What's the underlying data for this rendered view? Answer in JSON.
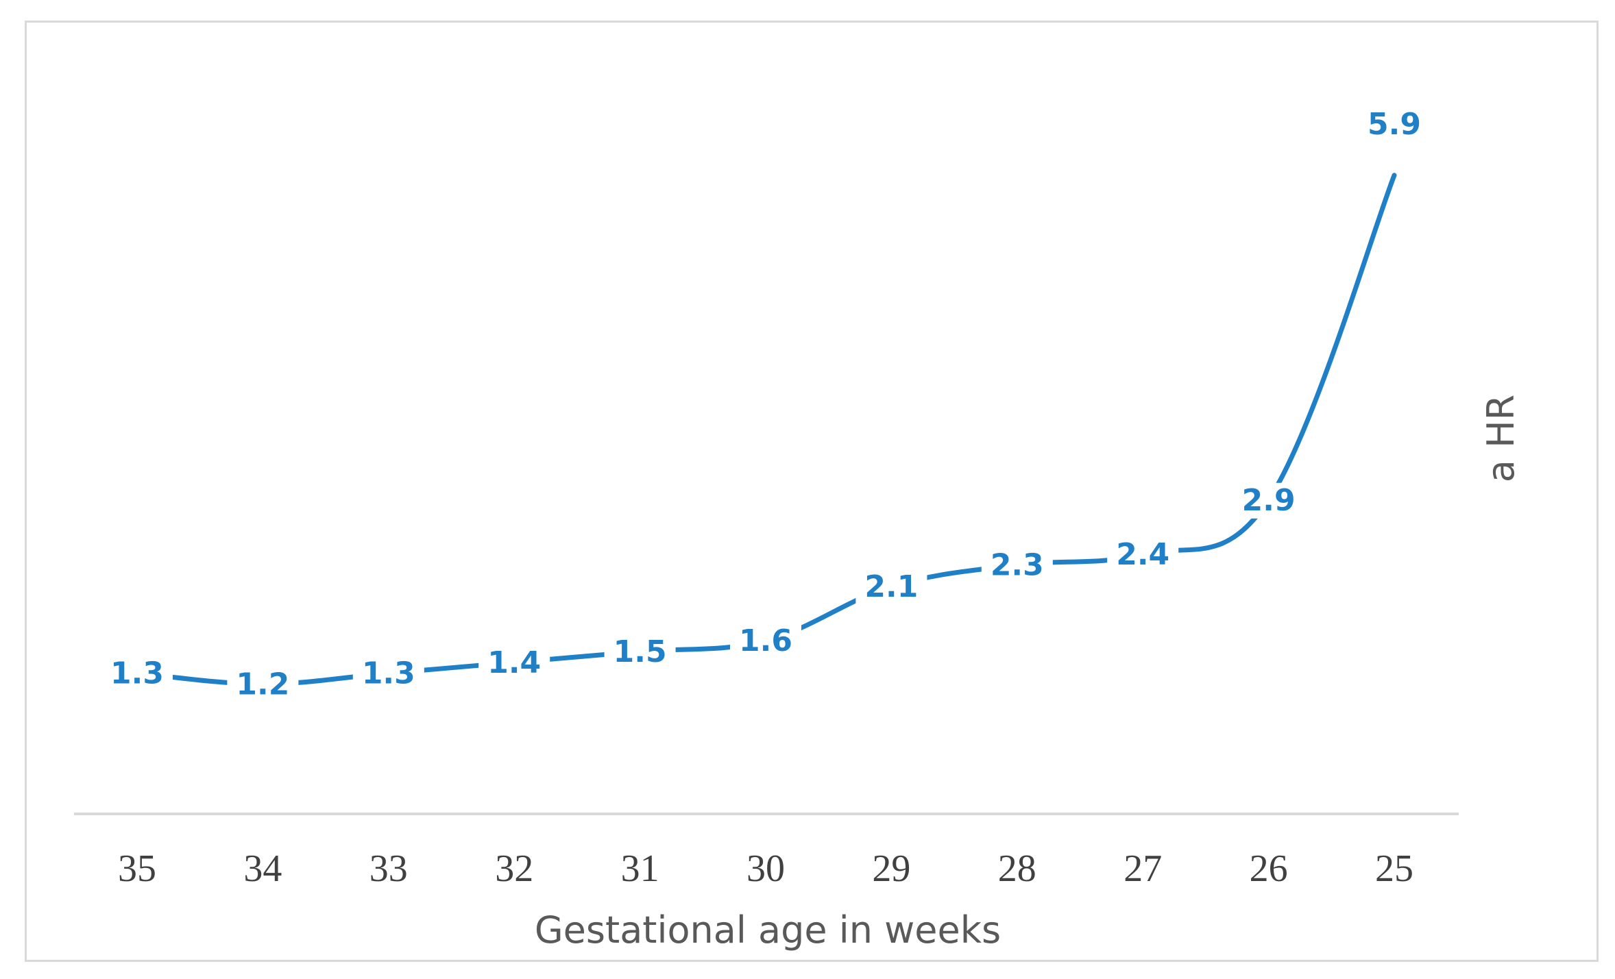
{
  "chart_data": {
    "type": "line",
    "title": "",
    "xlabel": "Gestational age in weeks",
    "ylabel": "a HR",
    "categories": [
      "35",
      "34",
      "33",
      "32",
      "31",
      "30",
      "29",
      "28",
      "27",
      "26",
      "25"
    ],
    "series": [
      {
        "name": "a HR",
        "values": [
          1.3,
          1.2,
          1.3,
          1.4,
          1.5,
          1.6,
          2.1,
          2.3,
          2.4,
          2.9,
          5.9
        ],
        "labels": [
          "1.3",
          "1.2",
          "1.3",
          "1.4",
          "1.5",
          "1.6",
          "2.1",
          "2.3",
          "2.4",
          "2.9",
          "5.9"
        ]
      }
    ],
    "ylim": [
      0,
      7
    ],
    "grid": false,
    "legend": "none",
    "colors": {
      "line": "#1f80c8",
      "axis": "#d9d9d9",
      "frame": "#d9d9d9"
    }
  }
}
